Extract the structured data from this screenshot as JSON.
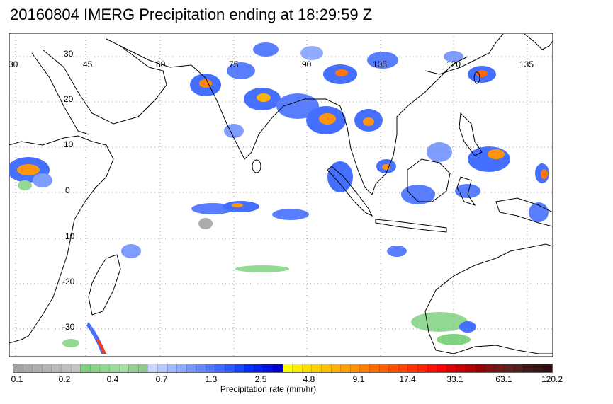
{
  "title": "20160804 IMERG Precipitation ending at 18:29:59 Z",
  "map": {
    "lon_labels": [
      "30",
      "45",
      "60",
      "75",
      "90",
      "105",
      "120",
      "135"
    ],
    "lat_labels": [
      "30",
      "20",
      "10",
      "0",
      "10",
      "-20",
      "-30"
    ],
    "gridlines": true,
    "lon_range": [
      30,
      142
    ],
    "lat_range": [
      -36,
      36
    ]
  },
  "colorbar": {
    "tick_labels": [
      "0.1",
      "0.2",
      "0.4",
      "0.7",
      "1.3",
      "2.5",
      "4.8",
      "9.1",
      "17.4",
      "33.1",
      "63.1",
      "120.2"
    ],
    "caption": "Precipitation rate (mm/hr)",
    "colors": [
      "#a3a3a3",
      "#a8a8a8",
      "#adadad",
      "#b3b3b3",
      "#b8b8b8",
      "#bdbdbd",
      "#c2c2c2",
      "#7ad07a",
      "#84d484",
      "#8ed88e",
      "#98dc98",
      "#a2e0a2",
      "#94cf8f",
      "#8ec88a",
      "#c8d8ff",
      "#b4c8ff",
      "#a0b8ff",
      "#8ca8ff",
      "#7898ff",
      "#6488ff",
      "#5078ff",
      "#3c68ff",
      "#2858ff",
      "#1446ff",
      "#0030ff",
      "#0020f0",
      "#0010e0",
      "#0000d0",
      "#ffff00",
      "#fff000",
      "#ffe000",
      "#ffd000",
      "#ffc000",
      "#ffb000",
      "#ffa000",
      "#ff9000",
      "#ff8000",
      "#ff7000",
      "#ff6000",
      "#ff5000",
      "#ff4000",
      "#ff3000",
      "#ff2000",
      "#ff1000",
      "#ff0000",
      "#e00000",
      "#c80000",
      "#b00000",
      "#980000",
      "#801010",
      "#701818",
      "#602020",
      "#502020",
      "#401818",
      "#381414",
      "#301010"
    ]
  }
}
